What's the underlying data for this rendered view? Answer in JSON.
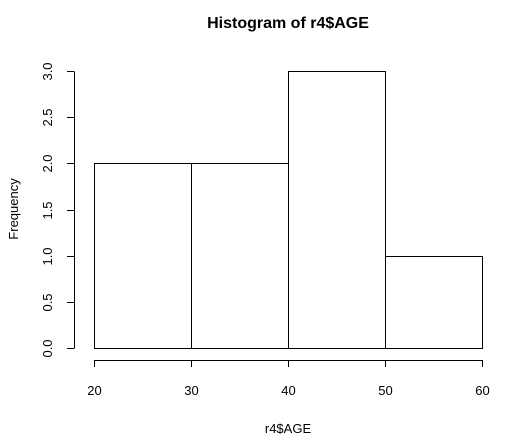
{
  "chart_data": {
    "type": "bar",
    "title": "Histogram of r4$AGE",
    "xlabel": "r4$AGE",
    "ylabel": "Frequency",
    "bins": [
      {
        "from": 20,
        "to": 30,
        "count": 2
      },
      {
        "from": 30,
        "to": 40,
        "count": 2
      },
      {
        "from": 40,
        "to": 50,
        "count": 3
      },
      {
        "from": 50,
        "to": 60,
        "count": 1
      }
    ],
    "xlim": [
      20,
      60
    ],
    "ylim": [
      0,
      3
    ],
    "x_ticks": [
      "20",
      "30",
      "40",
      "50",
      "60"
    ],
    "y_ticks": [
      "0.0",
      "0.5",
      "1.0",
      "1.5",
      "2.0",
      "2.5",
      "3.0"
    ],
    "bar_fill": "#ffffff",
    "bar_stroke": "#000000",
    "grid": false,
    "legend": "none"
  }
}
